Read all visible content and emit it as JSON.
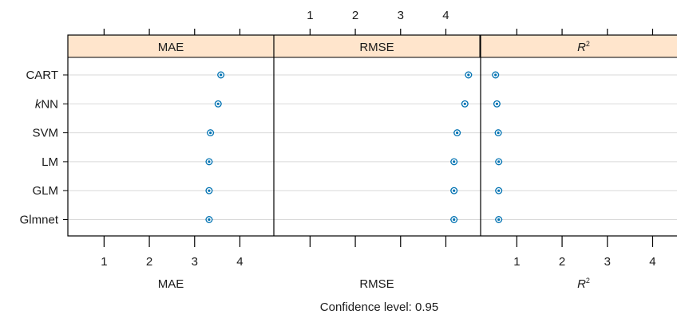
{
  "chart_data": {
    "type": "scatter",
    "panels": [
      {
        "title": "MAE",
        "xlabel": "MAE",
        "title_italic": false
      },
      {
        "title": "RMSE",
        "xlabel": "RMSE",
        "title_italic": false
      },
      {
        "title": "R",
        "xlabel": "R",
        "title_italic": true,
        "superscript": "2"
      }
    ],
    "categories": [
      "CART",
      "kNN",
      "SVM",
      "LM",
      "GLM",
      "Glmnet"
    ],
    "category_italic_prefix": {
      "kNN": "k"
    },
    "x_ticks": [
      1,
      2,
      3,
      4
    ],
    "xlim": [
      0.2,
      4.75
    ],
    "top_tick_labels_panel": "RMSE",
    "bottom_tick_labels_panels": [
      "MAE",
      "R2"
    ],
    "series": [
      {
        "panel": "MAE",
        "values": [
          3.58,
          3.52,
          3.35,
          3.32,
          3.32,
          3.32
        ]
      },
      {
        "panel": "RMSE",
        "values": [
          4.5,
          4.42,
          4.25,
          4.18,
          4.18,
          4.18
        ]
      },
      {
        "panel": "R2",
        "values": [
          0.53,
          0.56,
          0.59,
          0.6,
          0.6,
          0.6
        ]
      }
    ],
    "caption": "Confidence level: 0.95",
    "strip_color": "#ffe5cc",
    "point_color": "#0072b2",
    "grid": true
  }
}
